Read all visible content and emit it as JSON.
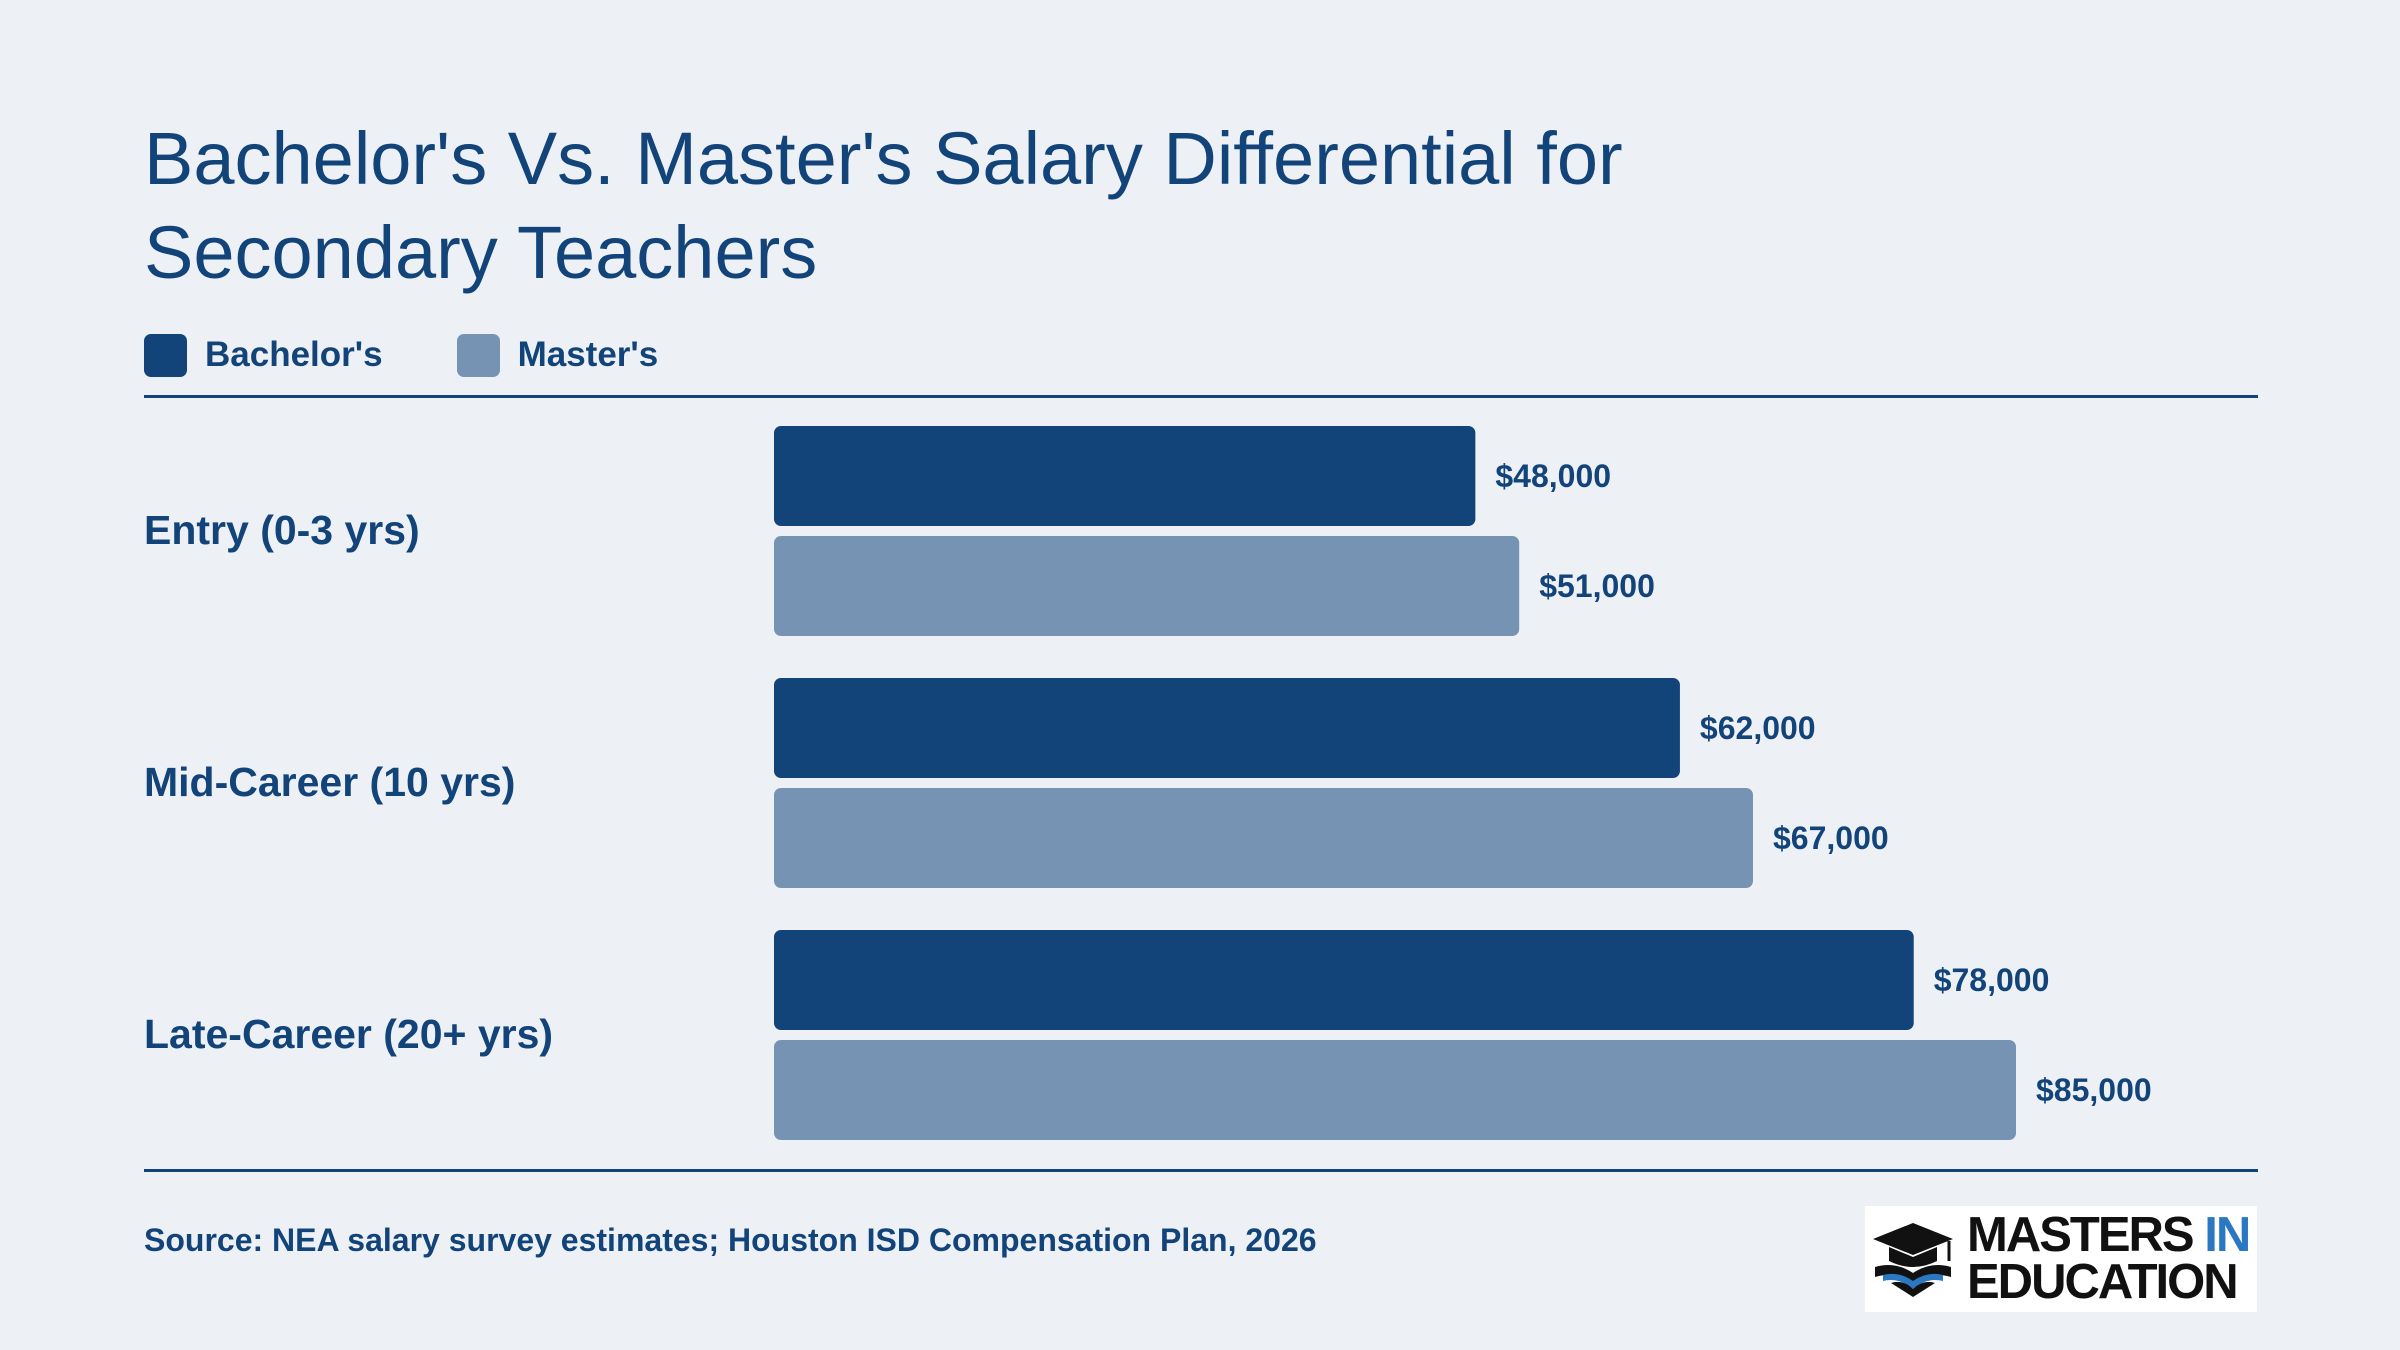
{
  "title": "Bachelor's Vs. Master's Salary Differential for Secondary Teachers",
  "legend": [
    {
      "label": "Bachelor's",
      "color": "#12447a"
    },
    {
      "label": "Master's",
      "color": "#7693b3"
    }
  ],
  "source": "Source: NEA salary survey estimates; Houston ISD Compensation Plan, 2026",
  "logo": {
    "line1": "MASTERS",
    "line1_accent": "IN",
    "line2": "EDUCATION"
  },
  "chart_data": {
    "type": "bar",
    "orientation": "horizontal",
    "categories": [
      "Entry (0-3 yrs)",
      "Mid-Career (10 yrs)",
      "Late-Career (20+ yrs)"
    ],
    "series": [
      {
        "name": "Bachelor's",
        "color": "#12447a",
        "values": [
          48000,
          62000,
          78000
        ],
        "labels": [
          "$48,000",
          "$62,000",
          "$78,000"
        ]
      },
      {
        "name": "Master's",
        "color": "#7693b3",
        "values": [
          51000,
          67000,
          85000
        ],
        "labels": [
          "$51,000",
          "$67,000",
          "$85,000"
        ]
      }
    ],
    "xlim": [
      0,
      85000
    ],
    "grid": false,
    "legend_position": "top-left"
  }
}
